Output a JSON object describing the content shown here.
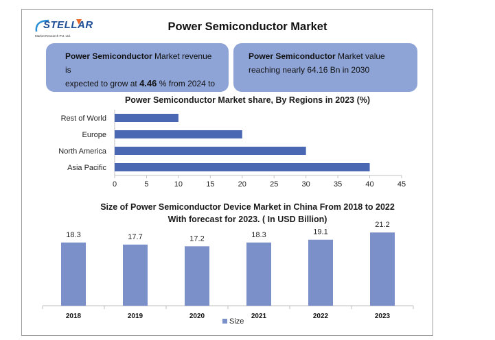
{
  "logo": {
    "text": "STELLAR",
    "subtitle": "Market Research Pvt. Ltd."
  },
  "title": "Power Semiconductor Market",
  "info_left": {
    "bold": "Power Semiconductor",
    "text1": " Market revenue is",
    "text2": "expected to grow at ",
    "value": "4.46",
    "text3": " % from 2024 to"
  },
  "info_right": {
    "bold": "Power Semiconductor",
    "text1": " Market value",
    "text2": "reaching nearly 64.16 Bn in 2030"
  },
  "colors": {
    "bar": "#4a67b3",
    "column": "#7b8fc8",
    "box": "#8ea3d6"
  },
  "chart_data": [
    {
      "type": "bar",
      "orientation": "horizontal",
      "title": "Power Semiconductor Market share,  By Regions in 2023  (%)",
      "categories": [
        "Rest of World",
        "Europe",
        "North America",
        "Asia Pacific"
      ],
      "values": [
        10,
        20,
        30,
        40
      ],
      "xlim": [
        0,
        45
      ],
      "xticks": [
        "0",
        "5",
        "10",
        "15",
        "20",
        "25",
        "30",
        "35",
        "40",
        "45"
      ],
      "grid": false
    },
    {
      "type": "bar",
      "title_line1": "Size of Power Semiconductor Device Market in China From 2018 to 2022",
      "title_line2": "With forecast for 2023. ( In USD Billion)",
      "categories": [
        "2018",
        "2019",
        "2020",
        "2021",
        "2022",
        "2023"
      ],
      "series": [
        {
          "name": "Size",
          "values": [
            18.3,
            17.7,
            17.2,
            18.3,
            19.1,
            21.2
          ]
        }
      ],
      "data_labels": [
        "18.3",
        "17.7",
        "17.2",
        "18.3",
        "19.1",
        "21.2"
      ],
      "ylim": [
        0,
        25
      ],
      "legend": "bottom",
      "grid": false
    }
  ]
}
